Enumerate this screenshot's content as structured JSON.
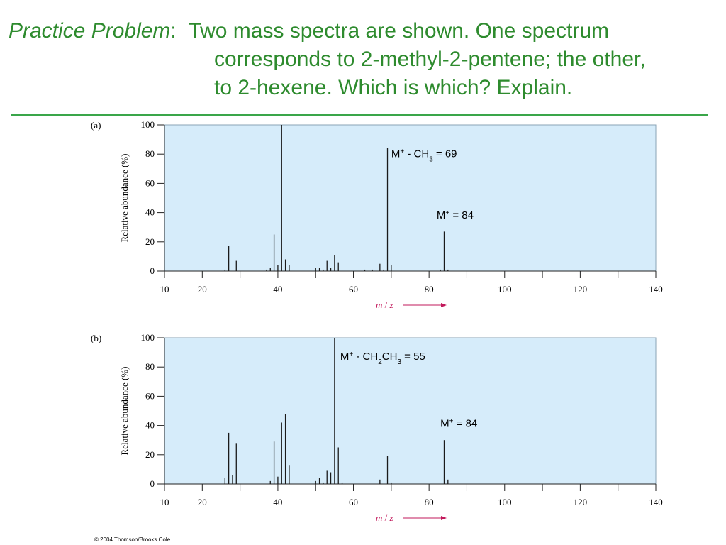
{
  "title": {
    "lead": "Practice Problem",
    "colon": ":",
    "line1": "Two mass spectra are shown.  One spectrum",
    "line2": "corresponds to 2-methyl-2-pentene; the other,",
    "line3": "to 2-hexene.  Which is which? Explain."
  },
  "colors": {
    "title_text": "#2e8b2e",
    "rule": "#3aa64a",
    "plot_background": "#d6ecfa",
    "axis_label_x": "#c2185b"
  },
  "chart_data": [
    {
      "type": "bar",
      "panel_label": "(a)",
      "ylabel": "Relative abundance (%)",
      "xlabel_italic_m": "m",
      "xlabel_slash": " / ",
      "xlabel_italic_z": "z",
      "xlim": [
        10,
        140
      ],
      "ylim": [
        0,
        100
      ],
      "x_ticks": [
        10,
        20,
        40,
        60,
        80,
        100,
        120,
        140
      ],
      "y_ticks": [
        0,
        20,
        40,
        60,
        80,
        100
      ],
      "peaks": [
        {
          "x": 26,
          "y": 1
        },
        {
          "x": 27,
          "y": 17
        },
        {
          "x": 29,
          "y": 7
        },
        {
          "x": 37,
          "y": 1
        },
        {
          "x": 38,
          "y": 2
        },
        {
          "x": 39,
          "y": 25
        },
        {
          "x": 40,
          "y": 4
        },
        {
          "x": 41,
          "y": 100
        },
        {
          "x": 42,
          "y": 8
        },
        {
          "x": 43,
          "y": 4
        },
        {
          "x": 50,
          "y": 2
        },
        {
          "x": 51,
          "y": 2
        },
        {
          "x": 52,
          "y": 1
        },
        {
          "x": 53,
          "y": 7
        },
        {
          "x": 54,
          "y": 2
        },
        {
          "x": 55,
          "y": 11
        },
        {
          "x": 56,
          "y": 6
        },
        {
          "x": 63,
          "y": 1
        },
        {
          "x": 65,
          "y": 1
        },
        {
          "x": 67,
          "y": 5
        },
        {
          "x": 68,
          "y": 1
        },
        {
          "x": 69,
          "y": 84
        },
        {
          "x": 70,
          "y": 4
        },
        {
          "x": 83,
          "y": 1
        },
        {
          "x": 84,
          "y": 27
        },
        {
          "x": 85,
          "y": 1
        }
      ],
      "annotations": [
        {
          "x": 70,
          "y": 78,
          "parts": [
            [
              "M",
              ""
            ],
            [
              "+",
              "sup"
            ],
            [
              " - CH",
              ""
            ],
            [
              "3",
              "sub"
            ],
            [
              " = 69",
              ""
            ]
          ]
        },
        {
          "x": 82,
          "y": 36,
          "parts": [
            [
              "M",
              ""
            ],
            [
              "+",
              "sup"
            ],
            [
              " = 84",
              ""
            ]
          ]
        }
      ]
    },
    {
      "type": "bar",
      "panel_label": "(b)",
      "ylabel": "Relative abundance (%)",
      "xlabel_italic_m": "m",
      "xlabel_slash": " / ",
      "xlabel_italic_z": "z",
      "xlim": [
        10,
        140
      ],
      "ylim": [
        0,
        100
      ],
      "x_ticks": [
        10,
        20,
        40,
        60,
        80,
        100,
        120,
        140
      ],
      "y_ticks": [
        0,
        20,
        40,
        60,
        80,
        100
      ],
      "peaks": [
        {
          "x": 26,
          "y": 4
        },
        {
          "x": 27,
          "y": 35
        },
        {
          "x": 28,
          "y": 6
        },
        {
          "x": 29,
          "y": 28
        },
        {
          "x": 38,
          "y": 2
        },
        {
          "x": 39,
          "y": 29
        },
        {
          "x": 40,
          "y": 5
        },
        {
          "x": 41,
          "y": 42
        },
        {
          "x": 42,
          "y": 48
        },
        {
          "x": 43,
          "y": 13
        },
        {
          "x": 50,
          "y": 2
        },
        {
          "x": 51,
          "y": 4
        },
        {
          "x": 52,
          "y": 1
        },
        {
          "x": 53,
          "y": 9
        },
        {
          "x": 54,
          "y": 8
        },
        {
          "x": 55,
          "y": 100
        },
        {
          "x": 56,
          "y": 25
        },
        {
          "x": 57,
          "y": 1
        },
        {
          "x": 67,
          "y": 3
        },
        {
          "x": 69,
          "y": 19
        },
        {
          "x": 70,
          "y": 1
        },
        {
          "x": 84,
          "y": 30
        },
        {
          "x": 85,
          "y": 3
        }
      ],
      "annotations": [
        {
          "x": 56.5,
          "y": 85,
          "parts": [
            [
              "M",
              ""
            ],
            [
              "+",
              "sup"
            ],
            [
              " - CH",
              ""
            ],
            [
              "2",
              "sub"
            ],
            [
              "CH",
              ""
            ],
            [
              "3",
              "sub"
            ],
            [
              " = 55",
              ""
            ]
          ]
        },
        {
          "x": 83,
          "y": 39,
          "parts": [
            [
              "M",
              ""
            ],
            [
              "+",
              "sup"
            ],
            [
              " = 84",
              ""
            ]
          ]
        }
      ]
    }
  ],
  "copyright": "© 2004 Thomson/Brooks Cole"
}
